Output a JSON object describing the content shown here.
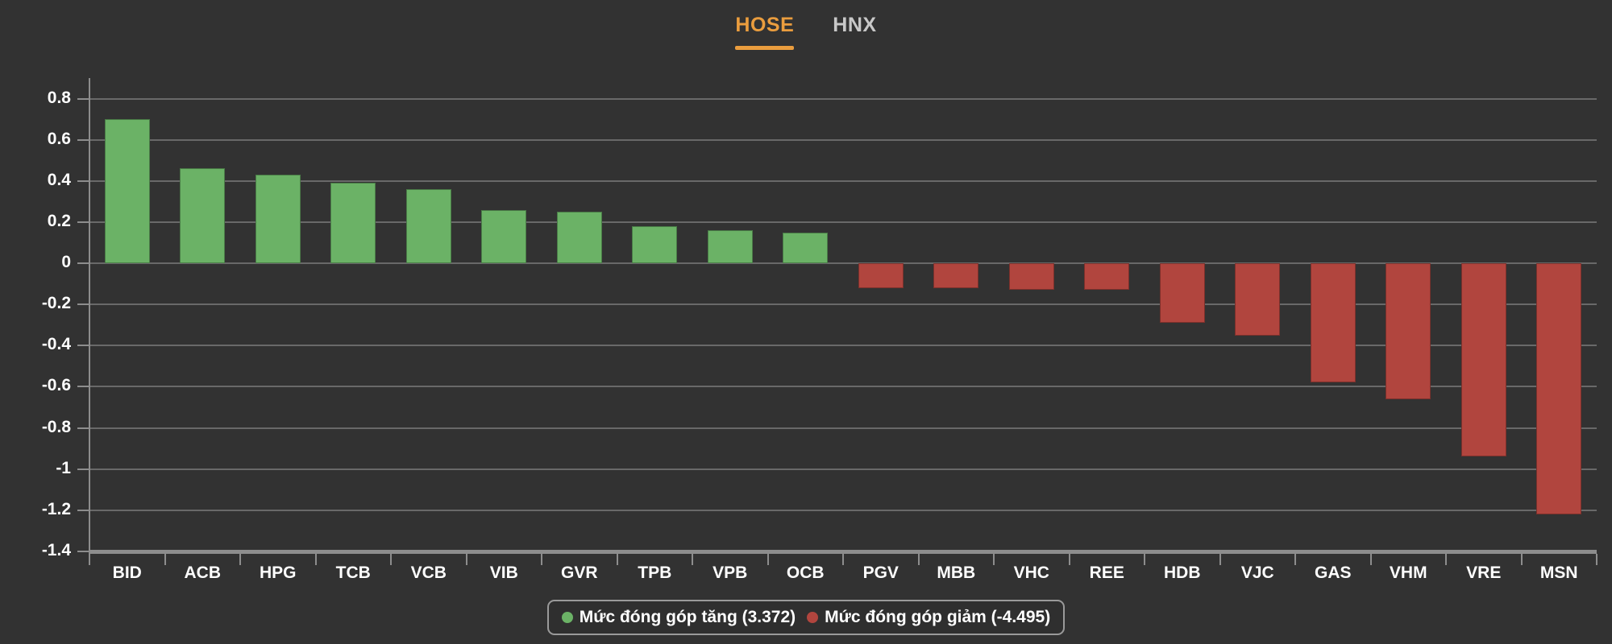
{
  "tabs": [
    {
      "label": "HOSE",
      "active": true
    },
    {
      "label": "HNX",
      "active": false
    }
  ],
  "colors": {
    "background": "#323232",
    "accent_orange": "#ea9d3e",
    "inactive_tab": "#c8c8c8",
    "positive": "#6bb266",
    "negative": "#b1453e",
    "grid": "#696969",
    "axis": "#8d8d8d",
    "text": "#ffffff"
  },
  "chart_data": {
    "type": "bar",
    "title": "",
    "xlabel": "",
    "ylabel": "",
    "categories": [
      "BID",
      "ACB",
      "HPG",
      "TCB",
      "VCB",
      "VIB",
      "GVR",
      "TPB",
      "VPB",
      "OCB",
      "PGV",
      "MBB",
      "VHC",
      "REE",
      "HDB",
      "VJC",
      "GAS",
      "VHM",
      "VRE",
      "MSN"
    ],
    "values": [
      0.7,
      0.46,
      0.43,
      0.39,
      0.36,
      0.26,
      0.25,
      0.18,
      0.16,
      0.15,
      -0.12,
      -0.12,
      -0.13,
      -0.13,
      -0.29,
      -0.35,
      -0.58,
      -0.66,
      -0.94,
      -1.22
    ],
    "ylim": {
      "min": -1.4,
      "max": 0.9
    },
    "yticks": [
      0.8,
      0.6,
      0.4,
      0.2,
      0,
      -0.2,
      -0.4,
      -0.6,
      -0.8,
      -1,
      -1.2,
      -1.4
    ],
    "grid": true,
    "legend": {
      "position": "bottom",
      "items": [
        {
          "label": "Mức đóng góp tăng (3.372)",
          "series": "positive"
        },
        {
          "label": "Mức đóng góp giảm (-4.495)",
          "series": "negative"
        }
      ]
    },
    "totals": {
      "positive_sum": "3.372",
      "negative_sum": "-4.495"
    }
  }
}
